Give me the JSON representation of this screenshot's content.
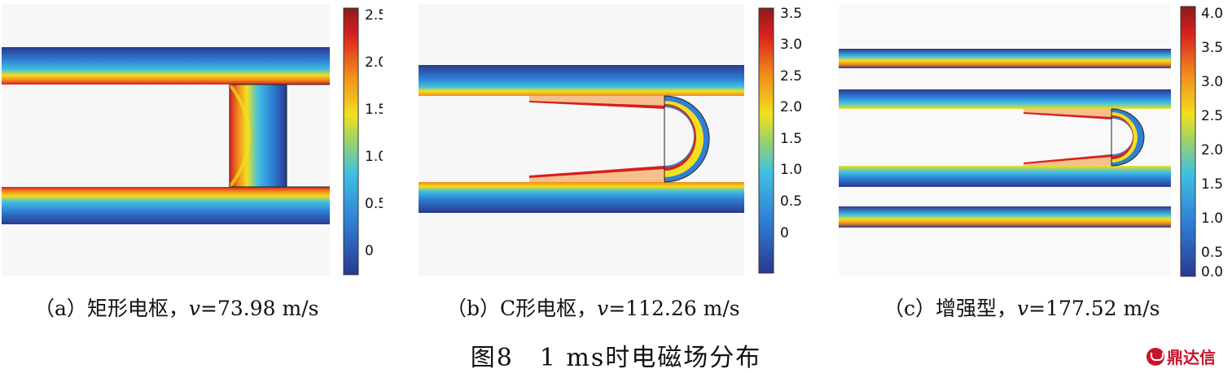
{
  "panels": [
    {
      "caption_prefix": "（a）矩形电枢，",
      "caption_var": "v",
      "caption_value": "=73.98 m/s",
      "colorbar_ticks": [
        "2.5",
        "2.0",
        "1.5",
        "1.0",
        "0.5",
        "0"
      ]
    },
    {
      "caption_prefix": "（b）C形电枢，",
      "caption_var": "v",
      "caption_value": "=112.26 m/s",
      "colorbar_ticks": [
        "3.5",
        "3.0",
        "2.5",
        "2.0",
        "1.5",
        "1.0",
        "0.5",
        "0"
      ]
    },
    {
      "caption_prefix": "（c）增强型，",
      "caption_var": "v",
      "caption_value": "=177.52 m/s",
      "colorbar_ticks": [
        "4.0",
        "3.5",
        "3.0",
        "2.5",
        "2.0",
        "1.5",
        "1.0",
        "0.5",
        "0.0"
      ]
    }
  ],
  "figure_title": "图8　1 ms时电磁场分布",
  "watermark": "鼎达信",
  "colormap": [
    "#2a3990",
    "#2f7fd6",
    "#3fc0e0",
    "#9ad26a",
    "#f2df1f",
    "#f28a1c",
    "#d6201e",
    "#8c1b1b"
  ]
}
